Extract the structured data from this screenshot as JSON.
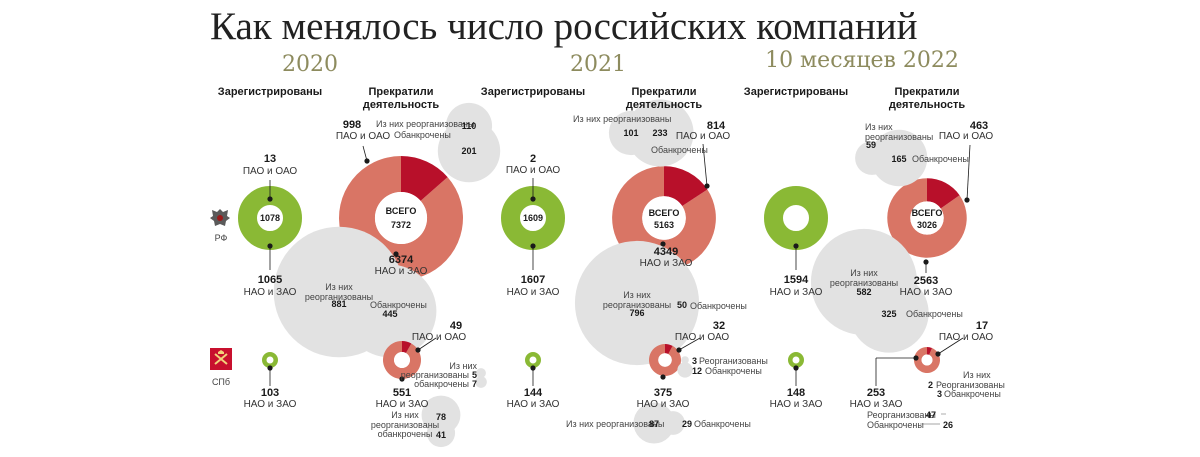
{
  "title": "Как менялось число российских компаний",
  "years": [
    "2020",
    "2021",
    "10 месяцев 2022"
  ],
  "regions": {
    "rf": "РФ",
    "spb": "СПб"
  },
  "headers": {
    "registered": "Зарегистрированы",
    "stopped_line1": "Прекратили",
    "stopped_line2": "деятельность"
  },
  "labels": {
    "pao": "ПАО и ОАО",
    "nao": "НАО и ЗАО",
    "total": "ВСЕГО",
    "of_them": "Из них",
    "reorganized": "реорганизованы",
    "bankrupt": "обанкрочены",
    "of_them_reorganized": "Из них реорганизованы",
    "bankrupt_cap": "Обанкрочены",
    "reorganized_cap": "Реорганизованы"
  },
  "chart_data": [
    {
      "type": "pie",
      "title": "",
      "year": "2020",
      "region": "РФ",
      "registered": {
        "total": 1078,
        "pao_oao": 13,
        "nao_zao": 1065
      },
      "stopped": {
        "total": 7372,
        "pao_oao": 998,
        "nao_zao": 6374,
        "pao_reorganized": 110,
        "pao_bankrupt": 201,
        "nao_reorganized": 881,
        "nao_bankrupt": 445
      }
    },
    {
      "type": "pie",
      "title": "",
      "year": "2020",
      "region": "СПб",
      "registered": {
        "nao_zao": 103
      },
      "stopped": {
        "pao_oao": 49,
        "nao_zao": 551,
        "pao_reorganized": 5,
        "pao_bankrupt": 7,
        "nao_reorganized": 78,
        "nao_bankrupt": 41
      }
    },
    {
      "type": "pie",
      "title": "",
      "year": "2021",
      "region": "РФ",
      "registered": {
        "total": 1609,
        "pao_oao": 2,
        "nao_zao": 1607
      },
      "stopped": {
        "total": 5163,
        "pao_oao": 814,
        "nao_zao": 4349,
        "pao_reorganized": 101,
        "pao_bankrupt": 233,
        "nao_reorganized": 796,
        "nao_bankrupt": 50
      }
    },
    {
      "type": "pie",
      "title": "",
      "year": "2021",
      "region": "СПб",
      "registered": {
        "nao_zao": 144
      },
      "stopped": {
        "pao_oao": 32,
        "nao_zao": 375,
        "pao_reorganized": 3,
        "pao_bankrupt": 12,
        "nao_reorganized": 87,
        "nao_bankrupt": 29
      }
    },
    {
      "type": "pie",
      "title": "",
      "year": "10 месяцев 2022",
      "region": "РФ",
      "registered": {
        "nao_zao": 1594
      },
      "stopped": {
        "total": 3026,
        "pao_oao": 463,
        "nao_zao": 2563,
        "pao_reorganized": 59,
        "pao_bankrupt": 165,
        "nao_reorganized": 582,
        "nao_bankrupt": 325
      }
    },
    {
      "type": "pie",
      "title": "",
      "year": "10 месяцев 2022",
      "region": "СПб",
      "registered": {
        "nao_zao": 148
      },
      "stopped": {
        "pao_oao": 17,
        "nao_zao": 253,
        "pao_reorganized": 2,
        "pao_bankrupt": 3,
        "nao_reorganized": 47,
        "nao_bankrupt": 26
      }
    }
  ],
  "colors": {
    "green": "#8ab935",
    "salmon": "#d97565",
    "darkred": "#b8102a",
    "grey": "#e2e2e2",
    "olive": "#8d8b5e"
  }
}
